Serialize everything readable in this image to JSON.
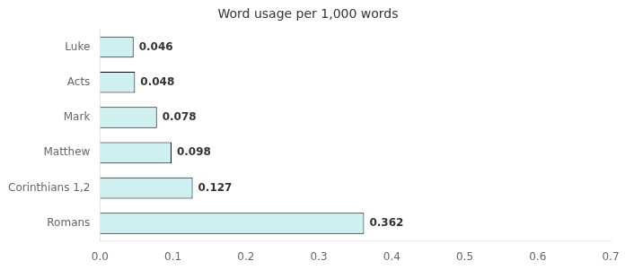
{
  "chart_data": {
    "type": "bar",
    "orientation": "horizontal",
    "title": "Word usage per 1,000 words",
    "categories": [
      "Romans",
      "Corinthians 1,2",
      "Matthew",
      "Mark",
      "Acts",
      "Luke"
    ],
    "values": [
      0.362,
      0.127,
      0.098,
      0.078,
      0.048,
      0.046
    ],
    "color": "#cff0f0",
    "xlim": [
      0,
      0.7
    ],
    "xticks": [
      {
        "value": 0,
        "label": "0.0"
      },
      0.1,
      0.2,
      0.3,
      0.4,
      0.5,
      0.6,
      0.7
    ],
    "grid": false,
    "data_labels": true
  }
}
